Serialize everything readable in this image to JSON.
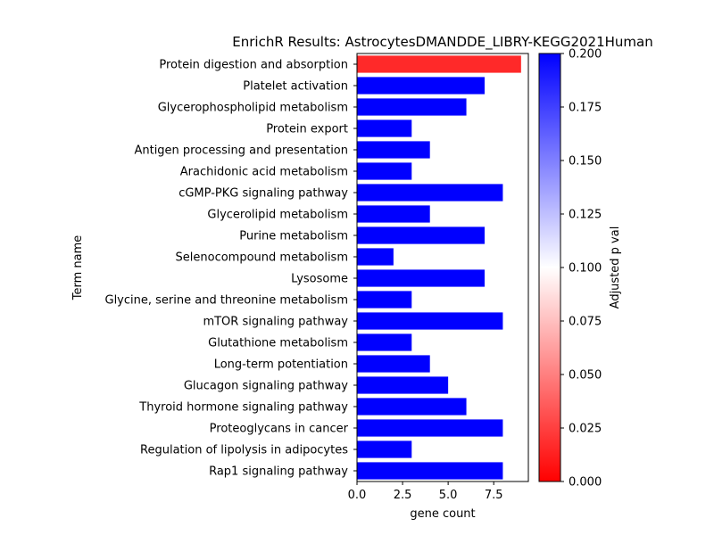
{
  "chart_data": {
    "type": "bar",
    "orientation": "horizontal",
    "title": "EnrichR Results: AstrocytesDMANDDE_LIBRY-KEGG2021Human",
    "xlabel": "gene count",
    "ylabel": "Term name",
    "xlim": [
      0,
      9.4
    ],
    "xticks": [
      0.0,
      2.5,
      5.0,
      7.5
    ],
    "xtick_labels": [
      "0.0",
      "2.5",
      "5.0",
      "7.5"
    ],
    "categories": [
      "Protein digestion and absorption",
      "Platelet activation",
      "Glycerophospholipid metabolism",
      "Protein export",
      "Antigen processing and presentation",
      "Arachidonic acid metabolism",
      "cGMP-PKG signaling pathway",
      "Glycerolipid metabolism",
      "Purine metabolism",
      "Selenocompound metabolism",
      "Lysosome",
      "Glycine, serine and threonine metabolism",
      "mTOR signaling pathway",
      "Glutathione metabolism",
      "Long-term potentiation",
      "Glucagon signaling pathway",
      "Thyroid hormone signaling pathway",
      "Proteoglycans in cancer",
      "Regulation of lipolysis in adipocytes",
      "Rap1 signaling pathway"
    ],
    "values": [
      9,
      7,
      6,
      3,
      4,
      3,
      8,
      4,
      7,
      2,
      7,
      3,
      8,
      3,
      4,
      5,
      6,
      8,
      3,
      8
    ],
    "adjusted_p": [
      0.016,
      0.2,
      0.2,
      0.2,
      0.2,
      0.2,
      0.2,
      0.2,
      0.2,
      0.2,
      0.2,
      0.2,
      0.2,
      0.2,
      0.2,
      0.2,
      0.2,
      0.2,
      0.2,
      0.2
    ],
    "colorbar": {
      "label": "Adjusted p val",
      "range": [
        0,
        0.2
      ],
      "ticks": [
        "0.000",
        "0.025",
        "0.050",
        "0.075",
        "0.100",
        "0.125",
        "0.150",
        "0.175",
        "0.200"
      ],
      "colors": [
        "#ff0000",
        "#ffffff",
        "#0000ff"
      ]
    },
    "grid": false,
    "legend": "colorbar-right"
  }
}
